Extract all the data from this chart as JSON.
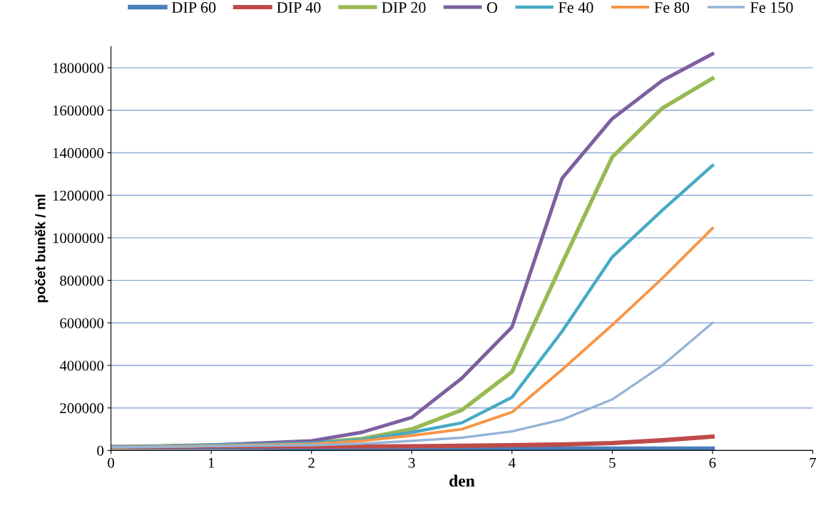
{
  "chart_data": {
    "type": "line",
    "xlabel": "den",
    "ylabel": "počet buněk / ml",
    "xlim": [
      0,
      7
    ],
    "xticks": [
      0,
      1,
      2,
      3,
      4,
      5,
      6,
      7
    ],
    "ylim": [
      0,
      1900000
    ],
    "yticks": [
      0,
      200000,
      400000,
      600000,
      800000,
      1000000,
      1200000,
      1400000,
      1600000,
      1800000
    ],
    "grid": "y",
    "legend": "top",
    "marker": "none",
    "line_style": "solid",
    "x": [
      0,
      1,
      2,
      2.5,
      3,
      3.5,
      4,
      4.5,
      5,
      5.5,
      6
    ],
    "series": [
      {
        "name": "DIP 60",
        "color": "#4a7ebb",
        "values": [
          15000,
          15000,
          12000,
          11000,
          10000,
          10000,
          10000,
          9000,
          8000,
          8000,
          8000
        ]
      },
      {
        "name": "DIP 40",
        "color": "#be4b48",
        "values": [
          15000,
          20000,
          18000,
          19000,
          20000,
          22000,
          25000,
          28000,
          35000,
          48000,
          65000
        ]
      },
      {
        "name": "DIP 20",
        "color": "#98b954",
        "values": [
          15000,
          25000,
          35000,
          55000,
          100000,
          190000,
          370000,
          880000,
          1380000,
          1610000,
          1750000
        ]
      },
      {
        "name": "O",
        "color": "#7d60a0",
        "values": [
          15000,
          25000,
          45000,
          85000,
          155000,
          340000,
          580000,
          1280000,
          1560000,
          1740000,
          1865000
        ]
      },
      {
        "name": "Fe 40",
        "color": "#46aac5",
        "values": [
          15000,
          25000,
          35000,
          50000,
          85000,
          130000,
          250000,
          560000,
          910000,
          1130000,
          1340000
        ]
      },
      {
        "name": "Fe 80",
        "color": "#f79646",
        "values": [
          15000,
          22000,
          30000,
          45000,
          70000,
          100000,
          180000,
          380000,
          590000,
          810000,
          1045000
        ]
      },
      {
        "name": "Fe 150",
        "color": "#95b3d7",
        "values": [
          15000,
          20000,
          25000,
          32000,
          45000,
          60000,
          90000,
          145000,
          240000,
          400000,
          600000
        ]
      }
    ]
  }
}
